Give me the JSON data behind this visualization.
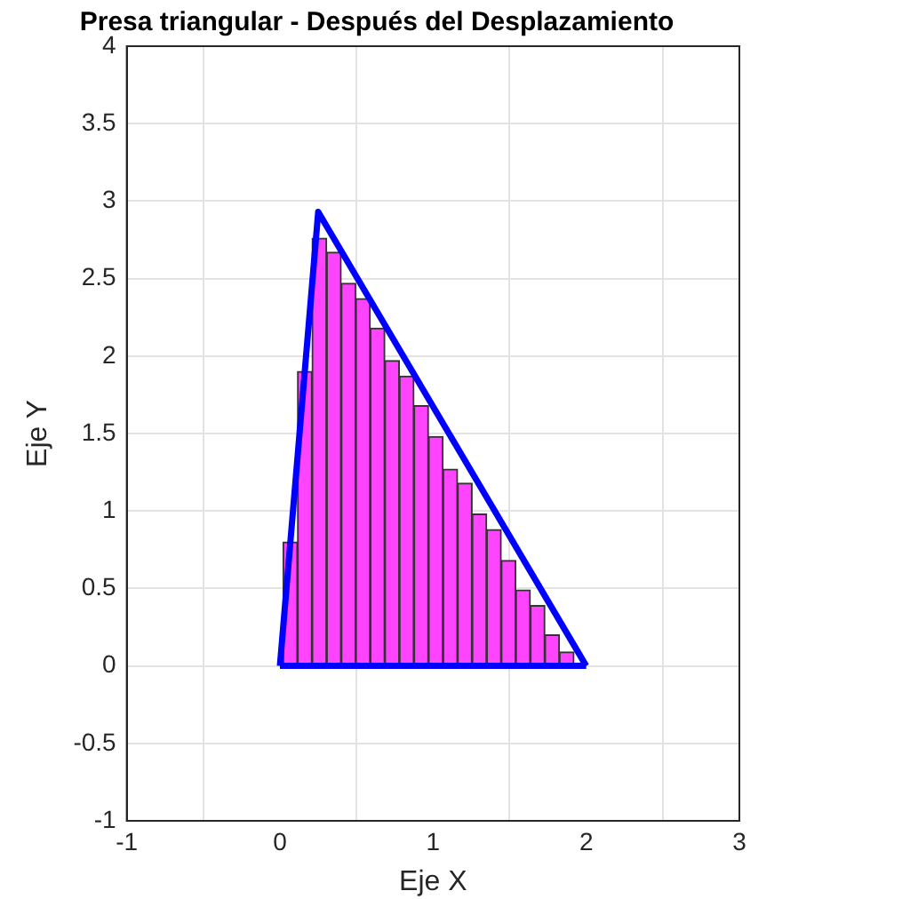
{
  "chart_data": {
    "type": "line",
    "title": "Presa triangular - Después del Desplazamiento",
    "xlabel": "Eje X",
    "ylabel": "Eje Y",
    "xlim": [
      -1,
      3
    ],
    "xticks": [
      -1,
      0,
      1,
      2,
      3
    ],
    "ylim": [
      -1,
      4
    ],
    "yticks": [
      {
        "value": -1,
        "label": "-1"
      },
      -0.5,
      0,
      0.5,
      1,
      1.5,
      2,
      2.5,
      3,
      3.5,
      4
    ],
    "grid": true,
    "series": [
      {
        "type": "histogram",
        "color": "#ff44ff",
        "bins": [
          0.02,
          0.115,
          0.21,
          0.305,
          0.4,
          0.495,
          0.59,
          0.685,
          0.78,
          0.875,
          0.97,
          1.065,
          1.16,
          1.255,
          1.35,
          1.445,
          1.54,
          1.635,
          1.73,
          1.825,
          1.92
        ],
        "values": [
          0.8,
          1.9,
          2.76,
          2.67,
          2.47,
          2.37,
          2.18,
          1.97,
          1.87,
          1.68,
          1.48,
          1.27,
          1.18,
          0.98,
          0.88,
          0.68,
          0.49,
          0.39,
          0.2,
          0.09
        ]
      },
      {
        "color": "#0000ff",
        "x": [
          0,
          0.25,
          2
        ],
        "values": [
          0,
          2.93,
          0
        ]
      },
      {
        "color": "#0000ff",
        "x": [
          0,
          2
        ],
        "values": [
          0,
          0
        ]
      }
    ]
  }
}
